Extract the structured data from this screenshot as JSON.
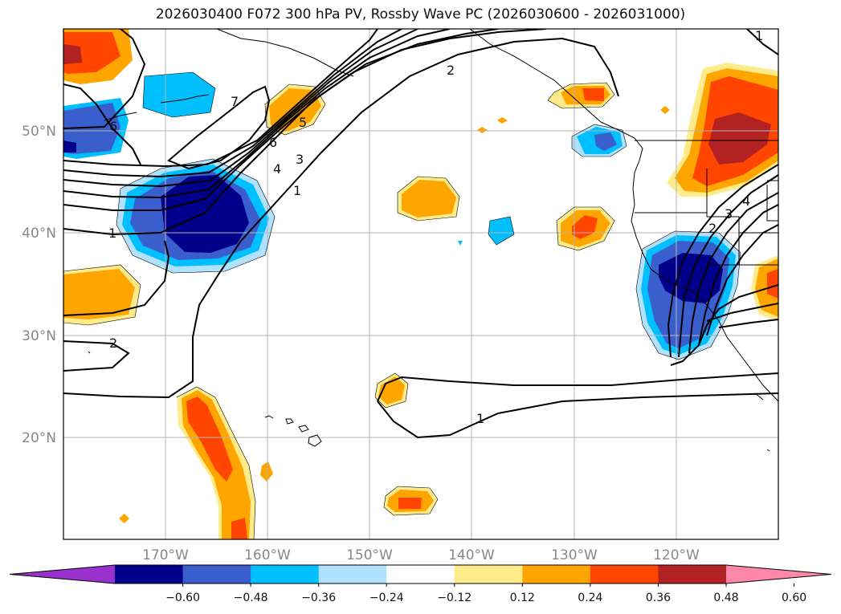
{
  "title": "2026030400 F072 300 hPa PV, Rossby Wave PC (2026030600 - 2026031000)",
  "map": {
    "lon_labels": [
      "170°W",
      "160°W",
      "150°W",
      "140°W",
      "130°W",
      "120°W"
    ],
    "lat_labels": [
      "50°N",
      "40°N",
      "30°N",
      "20°N"
    ]
  },
  "colorbar": {
    "colors": [
      "#9932cc",
      "#00008b",
      "#3a5fcd",
      "#00bfff",
      "#b0e2ff",
      "#ffffff",
      "#ffeb8a",
      "#ffa500",
      "#ff4500",
      "#b22222",
      "#ff88aa"
    ],
    "tick_labels": [
      "−0.60",
      "−0.48",
      "−0.36",
      "−0.24",
      "−0.12",
      "0.12",
      "0.24",
      "0.36",
      "0.48",
      "0.60"
    ]
  },
  "contour_labels": [
    "1",
    "2",
    "3",
    "4",
    "5",
    "6",
    "7",
    "6",
    "1",
    "2",
    "1",
    "2",
    "3",
    "4",
    "1"
  ]
}
